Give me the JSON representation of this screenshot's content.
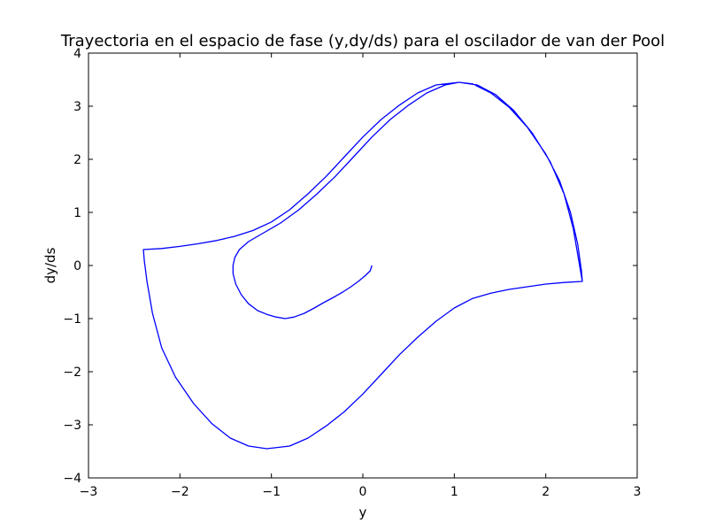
{
  "chart_data": {
    "type": "line",
    "title": "Trayectoria en el espacio de fase (y,dy/ds) para el oscilador de van der Pool",
    "xlabel": "y",
    "ylabel": "dy/ds",
    "xlim": [
      -3,
      3
    ],
    "ylim": [
      -4,
      4
    ],
    "xticks": [
      -3,
      -2,
      -1,
      0,
      1,
      2,
      3
    ],
    "yticks": [
      -4,
      -3,
      -2,
      -1,
      0,
      1,
      2,
      3,
      4
    ],
    "xtick_labels": [
      "−3",
      "−2",
      "−1",
      "0",
      "1",
      "2",
      "3"
    ],
    "ytick_labels": [
      "−4",
      "−3",
      "−2",
      "−1",
      "0",
      "1",
      "2",
      "3",
      "4"
    ],
    "grid": false,
    "series": [
      {
        "color": "#0000ff",
        "points": [
          [
            0.1,
            0.0
          ],
          [
            0.08,
            -0.1
          ],
          [
            0.02,
            -0.2
          ],
          [
            -0.05,
            -0.3
          ],
          [
            -0.13,
            -0.4
          ],
          [
            -0.22,
            -0.5
          ],
          [
            -0.32,
            -0.6
          ],
          [
            -0.43,
            -0.7
          ],
          [
            -0.53,
            -0.8
          ],
          [
            -0.64,
            -0.9
          ],
          [
            -0.75,
            -0.97
          ],
          [
            -0.85,
            -1.0
          ],
          [
            -0.95,
            -0.97
          ],
          [
            -1.05,
            -0.92
          ],
          [
            -1.15,
            -0.85
          ],
          [
            -1.25,
            -0.72
          ],
          [
            -1.33,
            -0.55
          ],
          [
            -1.39,
            -0.35
          ],
          [
            -1.42,
            -0.15
          ],
          [
            -1.42,
            0.0
          ],
          [
            -1.4,
            0.15
          ],
          [
            -1.35,
            0.3
          ],
          [
            -1.25,
            0.45
          ],
          [
            -1.1,
            0.6
          ],
          [
            -0.9,
            0.8
          ],
          [
            -0.7,
            1.05
          ],
          [
            -0.5,
            1.35
          ],
          [
            -0.3,
            1.68
          ],
          [
            -0.1,
            2.05
          ],
          [
            0.1,
            2.42
          ],
          [
            0.3,
            2.75
          ],
          [
            0.5,
            3.02
          ],
          [
            0.7,
            3.25
          ],
          [
            0.9,
            3.4
          ],
          [
            1.05,
            3.45
          ],
          [
            1.2,
            3.42
          ],
          [
            1.4,
            3.25
          ],
          [
            1.6,
            2.98
          ],
          [
            1.8,
            2.6
          ],
          [
            2.0,
            2.1
          ],
          [
            2.15,
            1.6
          ],
          [
            2.27,
            1.0
          ],
          [
            2.35,
            0.4
          ],
          [
            2.39,
            -0.1
          ],
          [
            2.4,
            -0.3
          ],
          [
            2.2,
            -0.32
          ],
          [
            2.0,
            -0.35
          ],
          [
            1.8,
            -0.4
          ],
          [
            1.6,
            -0.45
          ],
          [
            1.4,
            -0.52
          ],
          [
            1.2,
            -0.62
          ],
          [
            1.0,
            -0.8
          ],
          [
            0.8,
            -1.05
          ],
          [
            0.6,
            -1.35
          ],
          [
            0.4,
            -1.68
          ],
          [
            0.2,
            -2.05
          ],
          [
            0.0,
            -2.42
          ],
          [
            -0.2,
            -2.75
          ],
          [
            -0.4,
            -3.02
          ],
          [
            -0.6,
            -3.25
          ],
          [
            -0.8,
            -3.4
          ],
          [
            -1.05,
            -3.45
          ],
          [
            -1.25,
            -3.4
          ],
          [
            -1.45,
            -3.25
          ],
          [
            -1.65,
            -2.98
          ],
          [
            -1.85,
            -2.6
          ],
          [
            -2.05,
            -2.1
          ],
          [
            -2.2,
            -1.55
          ],
          [
            -2.3,
            -0.9
          ],
          [
            -2.36,
            -0.3
          ],
          [
            -2.39,
            0.1
          ],
          [
            -2.4,
            0.3
          ],
          [
            -2.2,
            0.32
          ],
          [
            -2.0,
            0.36
          ],
          [
            -1.8,
            0.41
          ],
          [
            -1.6,
            0.47
          ],
          [
            -1.4,
            0.55
          ],
          [
            -1.2,
            0.66
          ],
          [
            -1.0,
            0.82
          ],
          [
            -0.8,
            1.05
          ],
          [
            -0.6,
            1.35
          ],
          [
            -0.4,
            1.68
          ],
          [
            -0.2,
            2.05
          ],
          [
            0.0,
            2.42
          ],
          [
            0.2,
            2.75
          ],
          [
            0.4,
            3.02
          ],
          [
            0.6,
            3.25
          ],
          [
            0.8,
            3.4
          ],
          [
            1.05,
            3.45
          ],
          [
            1.25,
            3.4
          ],
          [
            1.45,
            3.22
          ],
          [
            1.65,
            2.92
          ],
          [
            1.85,
            2.5
          ],
          [
            2.05,
            1.95
          ],
          [
            2.2,
            1.35
          ],
          [
            2.3,
            0.7
          ],
          [
            2.36,
            0.1
          ],
          [
            2.4,
            -0.3
          ]
        ]
      }
    ]
  }
}
